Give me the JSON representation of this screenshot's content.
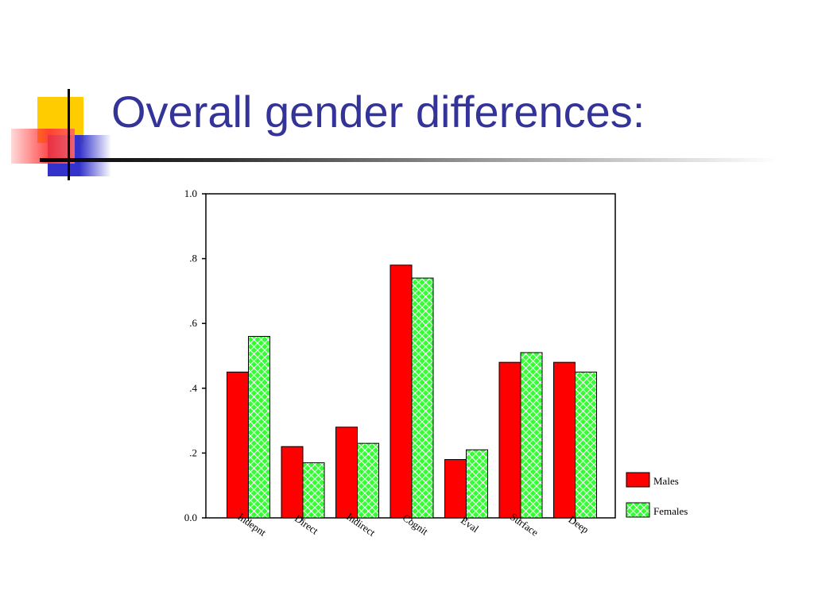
{
  "slide": {
    "title": "Overall gender differences:"
  },
  "colors": {
    "title": "#333399",
    "males": "#ff0000",
    "females": "#33ff33",
    "deco_yellow": "#ffcc00",
    "deco_blue": "#3333cc",
    "deco_red": "#ff3333"
  },
  "chart_data": {
    "type": "bar",
    "categories": [
      "Indepnt",
      "Direct",
      "Indirect",
      "Cognit",
      "Eval",
      "Surface",
      "Deep"
    ],
    "series": [
      {
        "name": "Males",
        "values": [
          0.45,
          0.22,
          0.28,
          0.78,
          0.18,
          0.48,
          0.48
        ]
      },
      {
        "name": "Females",
        "values": [
          0.56,
          0.17,
          0.23,
          0.74,
          0.21,
          0.51,
          0.45
        ]
      }
    ],
    "ylim": [
      0,
      1.0
    ],
    "yticks": [
      "0.0",
      ".2",
      ".4",
      ".6",
      ".8",
      "1.0"
    ],
    "legend_position": "bottom-right",
    "grid": false
  }
}
